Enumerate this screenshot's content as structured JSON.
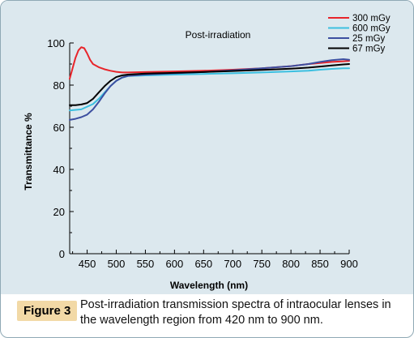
{
  "figure": {
    "label": "Figure 3",
    "caption": "Post-irradiation transmission spectra of intraocular lenses in the wavelength region from 420 nm to 900 nm."
  },
  "colors": {
    "panel_background": "#dce8ee",
    "figure_label_background": "#f2d9a6"
  },
  "chart_data": {
    "type": "line",
    "title": "Post-irradiation",
    "xlabel": "Wavelength (nm)",
    "ylabel": "Transmittance %",
    "xlim": [
      420,
      900
    ],
    "ylim": [
      0,
      100
    ],
    "x_ticks": [
      450,
      500,
      550,
      600,
      650,
      700,
      750,
      800,
      850,
      900
    ],
    "y_ticks": [
      0,
      20,
      40,
      60,
      80,
      100
    ],
    "legend_position": "top-right",
    "grid": false,
    "series": [
      {
        "name": "300 mGy",
        "color": "#e8252b",
        "points": [
          [
            420,
            83
          ],
          [
            425,
            88
          ],
          [
            430,
            93
          ],
          [
            435,
            96.5
          ],
          [
            440,
            98
          ],
          [
            445,
            97.5
          ],
          [
            450,
            95
          ],
          [
            455,
            92
          ],
          [
            460,
            90
          ],
          [
            470,
            88.5
          ],
          [
            480,
            87.5
          ],
          [
            490,
            86.8
          ],
          [
            500,
            86.3
          ],
          [
            510,
            86
          ],
          [
            520,
            86
          ],
          [
            550,
            86.2
          ],
          [
            600,
            86.5
          ],
          [
            650,
            86.8
          ],
          [
            700,
            87.3
          ],
          [
            750,
            88
          ],
          [
            800,
            89
          ],
          [
            830,
            90
          ],
          [
            850,
            90.5
          ],
          [
            870,
            91
          ],
          [
            890,
            91.3
          ],
          [
            900,
            91.5
          ]
        ]
      },
      {
        "name": "600 mGy",
        "color": "#3bbfe0",
        "points": [
          [
            420,
            68
          ],
          [
            440,
            68.5
          ],
          [
            460,
            71
          ],
          [
            470,
            73.5
          ],
          [
            480,
            76.5
          ],
          [
            490,
            79.5
          ],
          [
            500,
            82
          ],
          [
            510,
            83.5
          ],
          [
            520,
            84.3
          ],
          [
            550,
            84.6
          ],
          [
            600,
            85
          ],
          [
            650,
            85.3
          ],
          [
            700,
            85.6
          ],
          [
            750,
            86
          ],
          [
            800,
            86.5
          ],
          [
            830,
            86.8
          ],
          [
            850,
            87.3
          ],
          [
            870,
            87.7
          ],
          [
            890,
            88
          ],
          [
            900,
            88
          ]
        ]
      },
      {
        "name": "25 mGy",
        "color": "#3d4fa0",
        "points": [
          [
            420,
            63.5
          ],
          [
            430,
            64
          ],
          [
            440,
            64.8
          ],
          [
            450,
            66
          ],
          [
            460,
            68.5
          ],
          [
            470,
            72
          ],
          [
            480,
            76
          ],
          [
            490,
            79.5
          ],
          [
            500,
            82
          ],
          [
            510,
            83.6
          ],
          [
            520,
            84.4
          ],
          [
            550,
            85
          ],
          [
            600,
            85.6
          ],
          [
            650,
            86.2
          ],
          [
            700,
            87
          ],
          [
            750,
            88
          ],
          [
            800,
            89
          ],
          [
            830,
            90
          ],
          [
            850,
            91
          ],
          [
            870,
            91.8
          ],
          [
            890,
            92.3
          ],
          [
            900,
            92
          ]
        ]
      },
      {
        "name": "67 mGy",
        "color": "#000000",
        "points": [
          [
            420,
            70.5
          ],
          [
            430,
            70.5
          ],
          [
            440,
            70.8
          ],
          [
            450,
            71.5
          ],
          [
            460,
            73.5
          ],
          [
            470,
            76.5
          ],
          [
            480,
            79.5
          ],
          [
            490,
            82
          ],
          [
            500,
            83.8
          ],
          [
            510,
            84.6
          ],
          [
            520,
            85
          ],
          [
            550,
            85.5
          ],
          [
            600,
            85.8
          ],
          [
            650,
            86.2
          ],
          [
            700,
            86.7
          ],
          [
            750,
            87.2
          ],
          [
            800,
            87.8
          ],
          [
            830,
            88.3
          ],
          [
            850,
            88.8
          ],
          [
            870,
            89.3
          ],
          [
            890,
            89.8
          ],
          [
            900,
            90
          ]
        ]
      }
    ]
  }
}
